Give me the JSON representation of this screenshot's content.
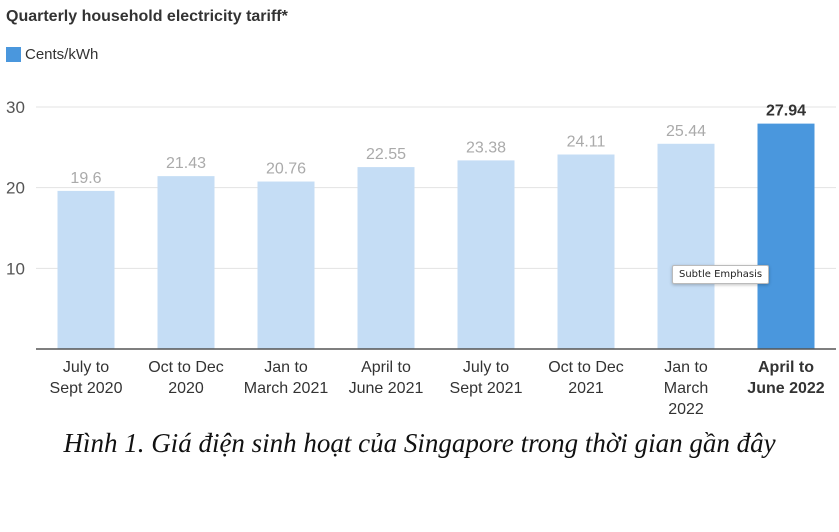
{
  "chart_data": {
    "type": "bar",
    "title": "Quarterly household electricity tariff*",
    "legend": {
      "label": "Cents/kWh",
      "position": "top-left"
    },
    "categories": [
      [
        "July to",
        "Sept 2020"
      ],
      [
        "Oct to Dec",
        "2020"
      ],
      [
        "Jan to",
        "March 2021"
      ],
      [
        "April to",
        "June 2021"
      ],
      [
        "July to",
        "Sept 2021"
      ],
      [
        "Oct to Dec",
        "2021"
      ],
      [
        "Jan to",
        "March",
        "2022"
      ],
      [
        "April to",
        "June 2022"
      ]
    ],
    "values": [
      19.6,
      21.43,
      20.76,
      22.55,
      23.38,
      24.11,
      25.44,
      27.94
    ],
    "value_labels": [
      "19.6",
      "21.43",
      "20.76",
      "22.55",
      "23.38",
      "24.11",
      "25.44",
      "27.94"
    ],
    "highlight_index": 7,
    "yticks": [
      10,
      20,
      30
    ],
    "ylim": [
      0,
      30
    ],
    "grid": true,
    "colors": {
      "bar": "#c5ddf5",
      "highlight": "#4a97dd",
      "legend": "#4a97dd",
      "grid": "#e3e3e3",
      "axis": "#555555",
      "value_label": "#aaaaaa"
    }
  },
  "tooltip": {
    "text": "Subtle Emphasis"
  },
  "caption": "Hình 1. Giá điện sinh hoạt của Singapore trong thời gian gần đây"
}
